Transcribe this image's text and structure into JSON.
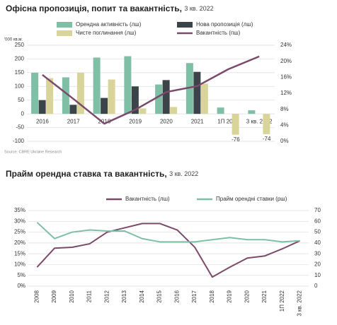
{
  "chart_data": [
    {
      "type": "bar",
      "title": "Офісна пропозиція, попит та вакантність,",
      "subtitle": "3 кв. 2022",
      "ylabel": "'000 кв.м.",
      "source": "Source: CBRE Ukraine Research",
      "categories": [
        "2016",
        "2017",
        "2018",
        "2019",
        "2020",
        "2021",
        "1П 2022",
        "3 кв. 2022"
      ],
      "series": [
        {
          "name": "Орендна активність (лш)",
          "color": "#7fbfa6",
          "values": [
            150,
            133,
            205,
            210,
            107,
            185,
            23,
            13
          ]
        },
        {
          "name": "Нова пропозиція (лш)",
          "color": "#3b4448",
          "values": [
            50,
            33,
            58,
            100,
            123,
            153,
            0,
            0
          ]
        },
        {
          "name": "Чисте поглинання (лш)",
          "color": "#d9d49a",
          "values": [
            130,
            150,
            125,
            20,
            25,
            110,
            -76,
            -74
          ]
        },
        {
          "name": "Вакантність (пш)",
          "color": "#7b4a6b",
          "type": "line",
          "axis": "y2",
          "values": [
            16.6,
            10.6,
            4.4,
            7.9,
            12.3,
            13.8,
            18,
            21.2
          ]
        }
      ],
      "ylim": [
        -100,
        250
      ],
      "yticks": [
        -100,
        -50,
        0,
        50,
        100,
        150,
        200,
        250
      ],
      "y2lim": [
        0,
        24
      ],
      "y2ticks": [
        {
          "value": 0,
          "label": "0%"
        },
        {
          "value": 4,
          "label": "4%"
        },
        {
          "value": 8,
          "label": "8%"
        },
        {
          "value": 12,
          "label": "12%"
        },
        {
          "value": 16,
          "label": "16%"
        },
        {
          "value": 20,
          "label": "20%"
        },
        {
          "value": 24,
          "label": "24%"
        }
      ],
      "grid": true
    },
    {
      "type": "line",
      "title": "Прайм орендна ставка та вакантність,",
      "subtitle": "3 кв. 2022",
      "categories": [
        "2008",
        "2009",
        "2010",
        "2011",
        "2012",
        "2013",
        "2014",
        "2015",
        "2016",
        "2017",
        "2018",
        "2019",
        "2020",
        "2021",
        "1П 2022",
        "3 кв. 2022"
      ],
      "series": [
        {
          "name": "Вакантність (лш)",
          "color": "#7b4a6b",
          "values": [
            8.8,
            17.6,
            18,
            19.6,
            25,
            27,
            29,
            29,
            26,
            18,
            4.2,
            8.8,
            13,
            14,
            17.3,
            21
          ]
        },
        {
          "name": "Прайм орендні ставки (рш)",
          "color": "#7fbfa6",
          "axis": "y2",
          "values": [
            59,
            44,
            50,
            52,
            51,
            51,
            44,
            41,
            41,
            41,
            43,
            45,
            43,
            43,
            41,
            42
          ]
        }
      ],
      "ylim": [
        0,
        35
      ],
      "yticks": [
        {
          "value": 0,
          "label": "0%"
        },
        {
          "value": 5,
          "label": "5%"
        },
        {
          "value": 10,
          "label": "10%"
        },
        {
          "value": 15,
          "label": "15%"
        },
        {
          "value": 20,
          "label": "20%"
        },
        {
          "value": 25,
          "label": "25%"
        },
        {
          "value": 30,
          "label": "30%"
        },
        {
          "value": 35,
          "label": "35%"
        }
      ],
      "y2lim": [
        0,
        70
      ],
      "y2ticks": [
        0,
        10,
        20,
        30,
        40,
        50,
        60,
        70
      ],
      "grid": true
    }
  ]
}
